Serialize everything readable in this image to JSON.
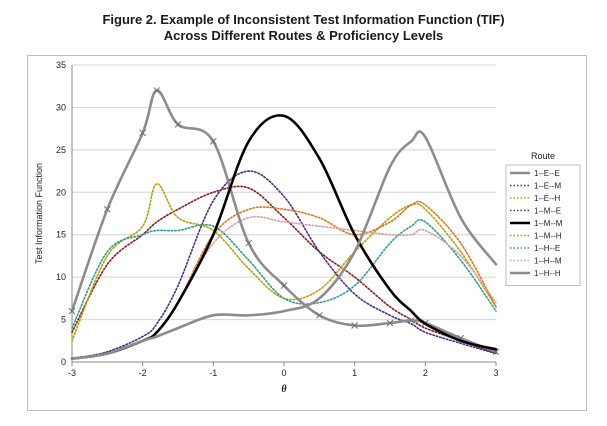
{
  "title_line1": "Figure 2. Example of Inconsistent Test Information Function (TIF)",
  "title_line2": "Across Different Routes & Proficiency Levels",
  "chart_data": {
    "type": "line",
    "title": "Figure 2. Example of Inconsistent Test Information Function (TIF) Across Different Routes & Proficiency Levels",
    "xlabel": "θ",
    "ylabel": "Test Information Function",
    "xlim": [
      -3,
      3
    ],
    "ylim": [
      0,
      35
    ],
    "xticks": [
      -3,
      -2,
      -1,
      0,
      1,
      2,
      3
    ],
    "yticks": [
      0,
      5,
      10,
      15,
      20,
      25,
      30,
      35
    ],
    "grid": "horizontal",
    "legend_title": "Route",
    "legend_position": "right",
    "x": [
      -3,
      -2.5,
      -2,
      -1.8,
      -1.5,
      -1,
      -0.5,
      0,
      0.5,
      1,
      1.5,
      1.8,
      2,
      2.5,
      3
    ],
    "series": [
      {
        "name": "1--E--E",
        "color": "#8c8c8c",
        "style": "solid-thick-markers",
        "values": [
          6,
          18,
          27,
          32,
          28,
          26,
          14,
          9,
          5.5,
          4.3,
          4.6,
          4.9,
          4.6,
          2.8,
          1.2
        ]
      },
      {
        "name": "1--E--M",
        "color": "#8b1a1a",
        "style": "dotted",
        "values": [
          3.5,
          11.5,
          15,
          16.5,
          18,
          20,
          20.5,
          17,
          13,
          10,
          6.5,
          5,
          4,
          2.5,
          1
        ]
      },
      {
        "name": "1--E--H",
        "color": "#b7a000",
        "style": "dotted",
        "values": [
          2.5,
          12.5,
          16,
          21,
          17,
          15.5,
          11,
          7.5,
          8.5,
          13,
          17,
          18.5,
          18,
          13,
          6.5
        ]
      },
      {
        "name": "1--M--E",
        "color": "#4b2a8a",
        "style": "dotted",
        "values": [
          0.4,
          1.2,
          3,
          4.5,
          9,
          19,
          22.5,
          19.5,
          13,
          8,
          5.5,
          4.5,
          3.5,
          2.2,
          1
        ]
      },
      {
        "name": "1--M--M",
        "color": "#000000",
        "style": "solid-thick",
        "values": [
          0.4,
          1,
          2.5,
          3.5,
          7,
          15,
          26,
          29,
          24,
          15,
          8.5,
          6,
          4.5,
          2.5,
          1.5
        ]
      },
      {
        "name": "1--M--H",
        "color": "#e0731c",
        "style": "dotted",
        "values": [
          0.4,
          1,
          2.5,
          3.5,
          7,
          15,
          18,
          18,
          17,
          15,
          16.5,
          18.5,
          18.5,
          14,
          6.5
        ]
      },
      {
        "name": "1--H--E",
        "color": "#2f9e8f",
        "style": "dotted",
        "values": [
          4,
          13,
          15,
          15.5,
          15.5,
          16,
          12,
          7.5,
          7,
          9,
          14,
          16,
          16.5,
          12,
          6
        ]
      },
      {
        "name": "1--H--M",
        "color": "#d8a0a0",
        "style": "dotted",
        "values": [
          0.4,
          1,
          2.5,
          3.5,
          7,
          14,
          17,
          16.5,
          16,
          15.5,
          15,
          15,
          15.5,
          12.5,
          7
        ]
      },
      {
        "name": "1--H--H",
        "color": "#8c8c8c",
        "style": "solid-thick",
        "values": [
          0.4,
          1,
          2.5,
          3,
          4,
          5.5,
          5.5,
          6,
          7.5,
          13,
          23,
          26,
          26.5,
          17,
          11.5
        ]
      }
    ]
  }
}
